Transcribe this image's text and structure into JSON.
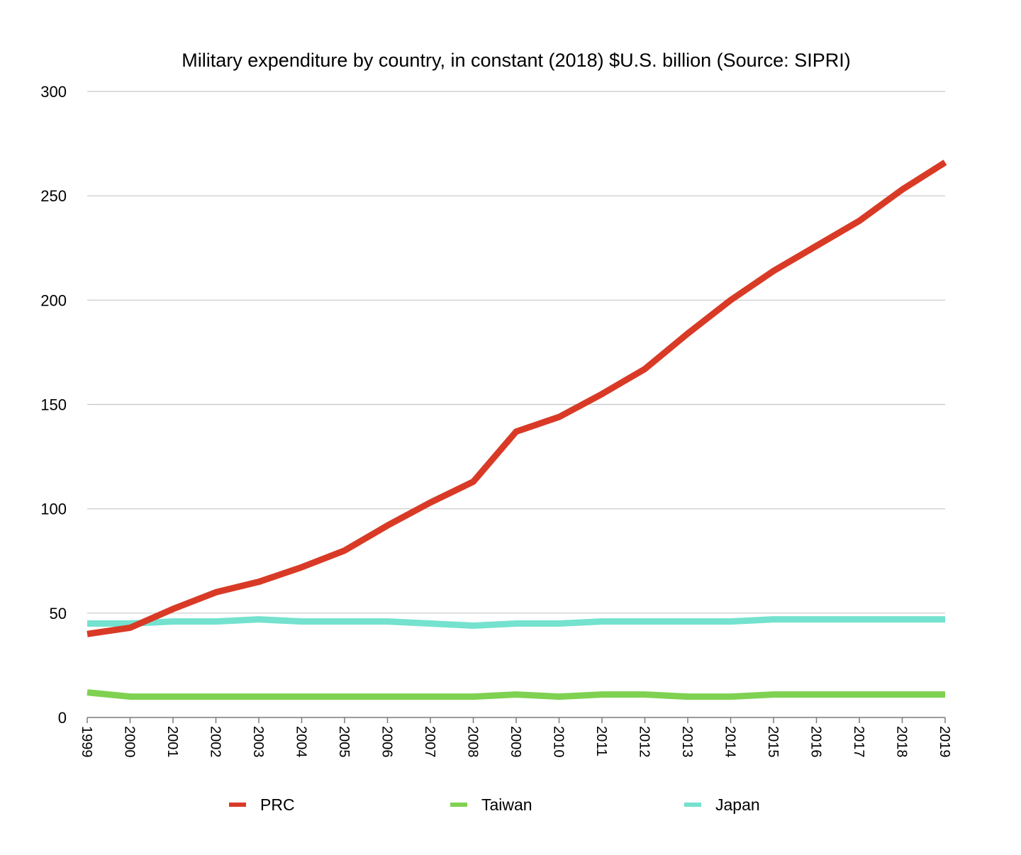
{
  "chart_data": {
    "type": "line",
    "title": "Military expenditure by country, in constant (2018) $U.S. billion (Source: SIPRI)",
    "xlabel": "",
    "ylabel": "",
    "ylim": [
      0,
      300
    ],
    "yticks": [
      0,
      50,
      100,
      150,
      200,
      250,
      300
    ],
    "grid": true,
    "legend_position": "bottom",
    "categories": [
      "1999",
      "2000",
      "2001",
      "2002",
      "2003",
      "2004",
      "2005",
      "2006",
      "2007",
      "2008",
      "2009",
      "2010",
      "2011",
      "2012",
      "2013",
      "2014",
      "2015",
      "2016",
      "2017",
      "2018",
      "2019"
    ],
    "series": [
      {
        "name": "PRC",
        "color": "#d93a26",
        "values": [
          40,
          43,
          52,
          60,
          65,
          72,
          80,
          92,
          103,
          113,
          137,
          144,
          155,
          167,
          184,
          200,
          214,
          226,
          238,
          253,
          266
        ]
      },
      {
        "name": "Taiwan",
        "color": "#7fd151",
        "values": [
          12,
          10,
          10,
          10,
          10,
          10,
          10,
          10,
          10,
          10,
          11,
          10,
          11,
          11,
          10,
          10,
          11,
          11,
          11,
          11,
          11
        ]
      },
      {
        "name": "Japan",
        "color": "#74e2cf",
        "values": [
          45,
          45,
          46,
          46,
          47,
          46,
          46,
          46,
          45,
          44,
          45,
          45,
          46,
          46,
          46,
          46,
          47,
          47,
          47,
          47,
          47
        ]
      }
    ],
    "draw_order": [
      "Japan",
      "Taiwan",
      "PRC"
    ]
  }
}
